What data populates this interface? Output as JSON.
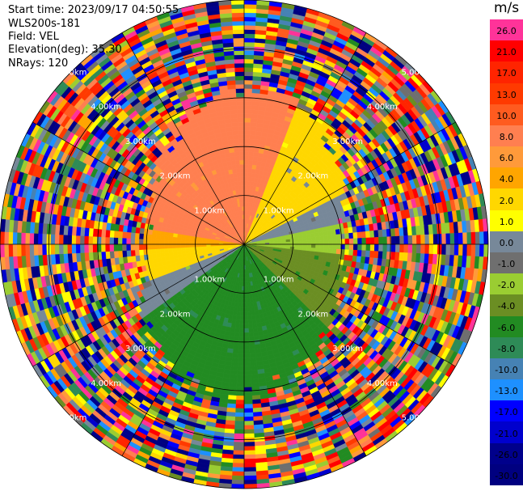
{
  "info": {
    "start_time": "Start time: 2023/09/17 04:50:55",
    "instrument": "WLS200s-181",
    "field": "Field: VEL",
    "elevation": "Elevation(deg): 35.30",
    "nrays": "NRays: 120"
  },
  "chart_data": {
    "type": "heatmap",
    "title": "",
    "projection": "polar PPI",
    "field": "VEL",
    "nrays": 120,
    "elevation_deg": 35.3,
    "range_ring_labels": [
      "1.00km",
      "2.00km",
      "3.00km",
      "4.00km",
      "5.00km"
    ],
    "range_rings_km": [
      1,
      2,
      3,
      4,
      5
    ],
    "max_range_km": 5.0,
    "colorbar": {
      "label": "m/s",
      "ticks": [
        "26.0",
        "21.0",
        "17.0",
        "13.0",
        "10.0",
        "8.0",
        "6.0",
        "4.0",
        "2.0",
        "1.0",
        "0.0",
        "-1.0",
        "-2.0",
        "-4.0",
        "-6.0",
        "-8.0",
        "-10.0",
        "-13.0",
        "-17.0",
        "-21.0",
        "-26.0",
        "-30.0"
      ],
      "colors": [
        "#ff3399",
        "#ff0000",
        "#ff2400",
        "#ff3a00",
        "#ff5b1f",
        "#ff7f50",
        "#ff9a3a",
        "#ffa500",
        "#ffd700",
        "#ffff00",
        "#778899",
        "#6f6f6f",
        "#9acd32",
        "#6b8e23",
        "#228b22",
        "#2e8b57",
        "#4682b4",
        "#1e90ff",
        "#0000ff",
        "#0000cd",
        "#00008b",
        "#000080"
      ]
    },
    "pattern": {
      "inner_region_description_free": true,
      "sectors": [
        {
          "az_from": 280,
          "az_to": 330,
          "value": 8.0
        },
        {
          "az_from": 330,
          "az_to": 20,
          "value": 8.0
        },
        {
          "az_from": 20,
          "az_to": 62,
          "value": 2.0
        },
        {
          "az_from": 62,
          "az_to": 78,
          "value": 0.0
        },
        {
          "az_from": 78,
          "az_to": 95,
          "value": -2.0
        },
        {
          "az_from": 95,
          "az_to": 135,
          "value": -4.0
        },
        {
          "az_from": 135,
          "az_to": 180,
          "value": -6.0
        },
        {
          "az_from": 180,
          "az_to": 235,
          "value": -6.0
        },
        {
          "az_from": 235,
          "az_to": 250,
          "value": 0.0
        },
        {
          "az_from": 250,
          "az_to": 268,
          "value": 2.0
        },
        {
          "az_from": 268,
          "az_to": 280,
          "value": 4.0
        }
      ]
    }
  }
}
